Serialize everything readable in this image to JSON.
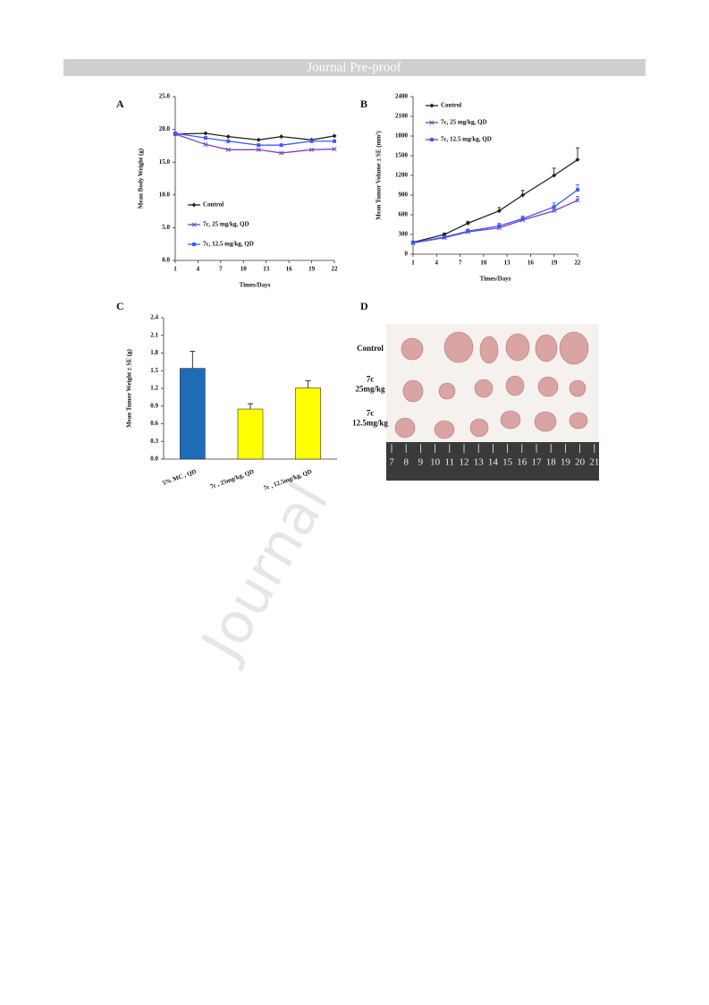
{
  "header": {
    "title": "Journal Pre-proof"
  },
  "watermark": "Journal",
  "chart_data": [
    {
      "type": "line",
      "label": "A",
      "xlabel": "Times/Days",
      "ylabel": "Mean Body Weight (g)",
      "xlim": [
        1,
        22
      ],
      "xticks": [
        1,
        4,
        7,
        10,
        13,
        16,
        19,
        22
      ],
      "ylim": [
        0,
        25
      ],
      "yticks": [
        {
          "value": 0,
          "label": "0.0"
        },
        {
          "value": 5,
          "label": "5.0"
        },
        {
          "value": 10,
          "label": "10.0"
        },
        {
          "value": 15,
          "label": "15.0"
        },
        {
          "value": 20,
          "label": "20.0"
        },
        {
          "value": 25,
          "label": "25.0"
        }
      ],
      "legend": "lower left",
      "x": [
        1,
        5,
        8,
        12,
        15,
        19,
        22
      ],
      "series": [
        {
          "name": "Control",
          "color": "#222222",
          "marker": "diamond",
          "values": [
            19.3,
            19.4,
            18.9,
            18.4,
            18.9,
            18.4,
            19.0
          ]
        },
        {
          "name": "7c, 25 mg/kg, QD",
          "color": "#7b3fc4",
          "marker": "x",
          "values": [
            19.3,
            17.7,
            16.9,
            16.9,
            16.4,
            16.9,
            17.0
          ]
        },
        {
          "name": "7c, 12.5 mg/kg, QD",
          "color": "#3b5bff",
          "marker": "square",
          "values": [
            19.4,
            18.7,
            18.2,
            17.6,
            17.6,
            18.2,
            18.2
          ]
        }
      ]
    },
    {
      "type": "line",
      "label": "B",
      "xlabel": "Times/Days",
      "ylabel": "Mean Tumor Volume ± SE (mm³)",
      "xlim": [
        1,
        22
      ],
      "xticks": [
        1,
        4,
        7,
        10,
        13,
        16,
        19,
        22
      ],
      "ylim": [
        0,
        2400
      ],
      "yticks": [
        0,
        300,
        600,
        900,
        1200,
        1500,
        1800,
        2100,
        2400
      ],
      "legend": "upper left",
      "x": [
        1,
        5,
        8,
        12,
        15,
        19,
        22
      ],
      "series": [
        {
          "name": "Control",
          "color": "#222222",
          "marker": "diamond",
          "values": [
            180,
            300,
            470,
            660,
            900,
            1200,
            1440
          ],
          "errors": [
            0,
            20,
            30,
            50,
            70,
            110,
            180
          ]
        },
        {
          "name": "7c, 25 mg/kg, QD",
          "color": "#7b3fc4",
          "marker": "x",
          "values": [
            170,
            250,
            340,
            400,
            520,
            660,
            820
          ],
          "errors": [
            20,
            20,
            30,
            30,
            40,
            50,
            60
          ]
        },
        {
          "name": "7c, 12.5 mg/kg, QD",
          "color": "#3b5bff",
          "marker": "square",
          "values": [
            175,
            260,
            350,
            430,
            540,
            720,
            980
          ],
          "errors": [
            20,
            20,
            30,
            40,
            40,
            60,
            80
          ]
        }
      ]
    },
    {
      "type": "bar",
      "label": "C",
      "ylabel": "Mean Tumor Weight ± SE (g)",
      "categories": [
        "5% MC , QD",
        "7c , 25mg/kg, QD",
        "7c , 12.5mg/kg, QD"
      ],
      "values": [
        1.54,
        0.85,
        1.21
      ],
      "errors": [
        0.29,
        0.09,
        0.12
      ],
      "colors": [
        "#1f6bb8",
        "#ffff00",
        "#ffff00"
      ],
      "ylim": [
        0,
        2.4
      ],
      "yticks": [
        {
          "value": 0,
          "label": "0.0"
        },
        {
          "value": 0.3,
          "label": "0.3"
        },
        {
          "value": 0.6,
          "label": "0.6"
        },
        {
          "value": 0.9,
          "label": "0.9"
        },
        {
          "value": 1.2,
          "label": "1.2"
        },
        {
          "value": 1.5,
          "label": "1.5"
        },
        {
          "value": 1.8,
          "label": "1.8"
        },
        {
          "value": 2.1,
          "label": "2.1"
        },
        {
          "value": 2.4,
          "label": "2.4"
        }
      ]
    }
  ],
  "photo": {
    "label": "D",
    "rows": [
      [
        "Control"
      ],
      [
        "7c",
        "25mg/kg"
      ],
      [
        "7c",
        "12.5mg/kg"
      ]
    ],
    "ruler": [
      "7",
      "8",
      "9",
      "10",
      "11",
      "12",
      "13",
      "14",
      "15",
      "16",
      "17",
      "18",
      "19",
      "20",
      "21"
    ]
  }
}
